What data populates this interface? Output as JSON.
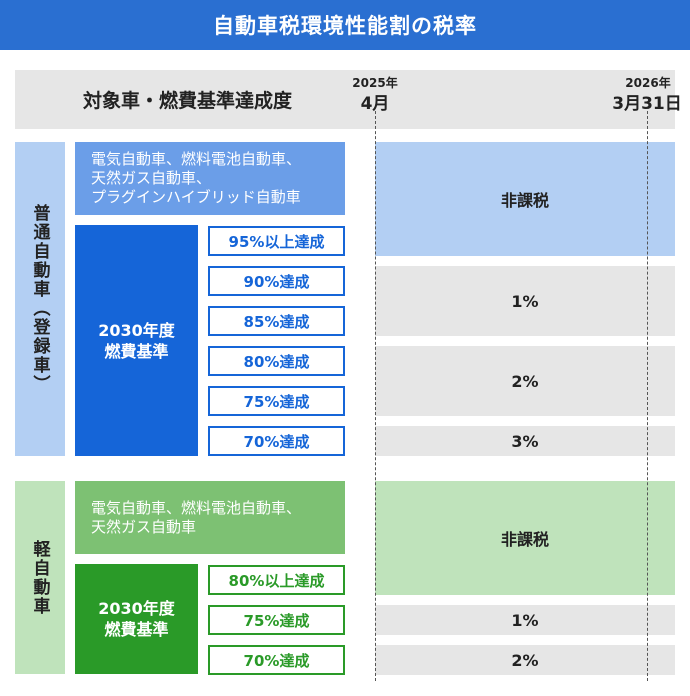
{
  "title": "自動車税環境性能割の税率",
  "header": {
    "label": "対象車・燃費基準達成度",
    "start_year": "2025年",
    "start_date": "4月",
    "end_year": "2026年",
    "end_date": "3月31日"
  },
  "regular": {
    "side_label": "普通自動車（登録車）",
    "ev_text": "電気自動車、燃料電池自動車、\n天然ガス自動車、\nプラグインハイブリッド自動車",
    "standard": "2030年度\n燃費基準",
    "levels": [
      "95%以上達成",
      "90%達成",
      "85%達成",
      "80%達成",
      "75%達成",
      "70%達成"
    ],
    "rates": [
      "非課税",
      "1%",
      "2%",
      "3%"
    ]
  },
  "kei": {
    "side_label": "軽自動車",
    "ev_text": "電気自動車、燃料電池自動車、\n天然ガス自動車",
    "standard": "2030年度\n燃費基準",
    "levels": [
      "80%以上達成",
      "75%達成",
      "70%達成"
    ],
    "rates": [
      "非課税",
      "1%",
      "2%"
    ]
  },
  "colors": {
    "title_bg": "#2a6fd1",
    "regular_side": "#b3cff3",
    "regular_ev": "#6b9ee8",
    "regular_std": "#1565d8",
    "regular_rate_exempt": "#b3cff3",
    "kei_side": "#bfe3bb",
    "kei_ev": "#7dc173",
    "kei_std": "#2a9a28",
    "kei_rate_exempt": "#bfe3bb",
    "rate_gray": "#e6e6e6"
  }
}
